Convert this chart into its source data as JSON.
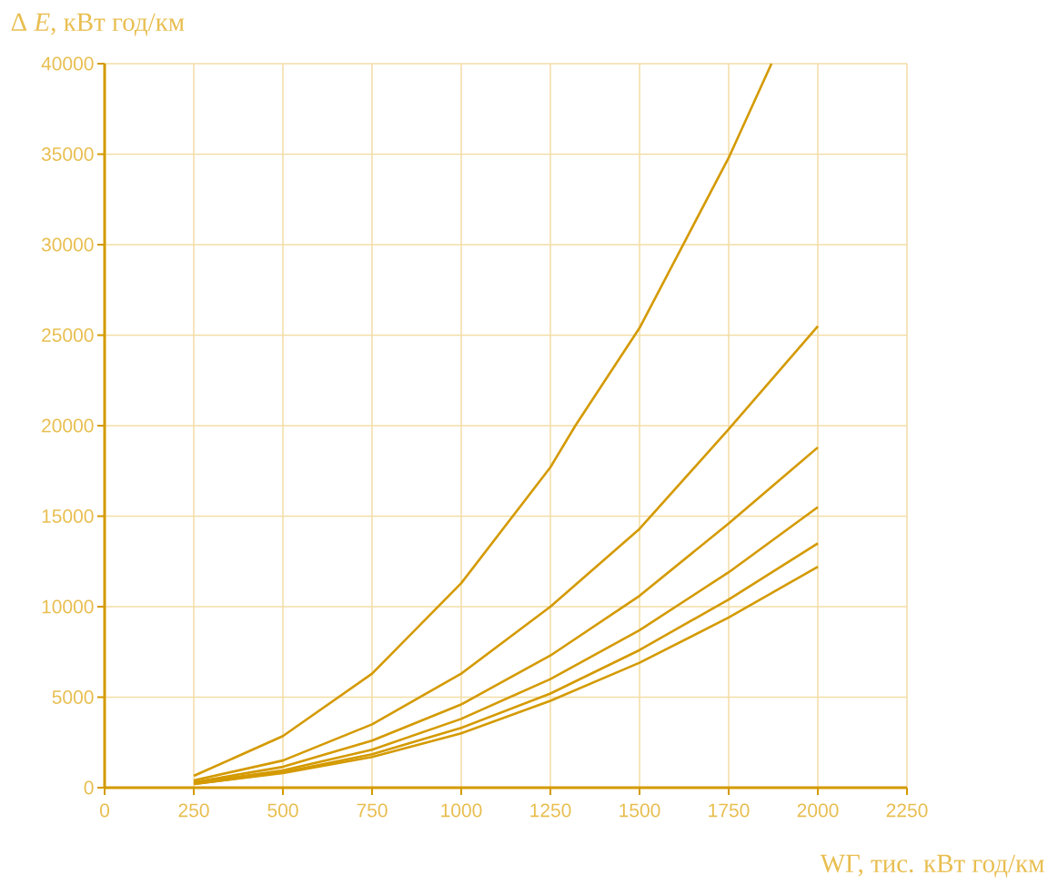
{
  "chart_data": {
    "type": "line",
    "xlabel": "WГ, тис. кВт год/км",
    "ylabel": "Δ *E*, кВт год/км",
    "xlim": [
      0,
      2250
    ],
    "ylim": [
      0,
      40000
    ],
    "xticks": [
      0,
      250,
      500,
      750,
      1000,
      1250,
      1500,
      1750,
      2000,
      2250
    ],
    "yticks": [
      0,
      5000,
      10000,
      15000,
      20000,
      25000,
      30000,
      35000,
      40000
    ],
    "grid": true,
    "marker": "none",
    "line_style": "solid",
    "series": [
      {
        "color": "#d49a00",
        "x": [
          250,
          500,
          750,
          1000,
          1250,
          1320,
          1500,
          1750,
          1870
        ],
        "values": [
          650,
          2850,
          6300,
          11300,
          17700,
          20000,
          25400,
          34800,
          40000
        ]
      },
      {
        "color": "#d49a00",
        "x": [
          250,
          500,
          750,
          1000,
          1250,
          1500,
          1750,
          2000
        ],
        "values": [
          400,
          1500,
          3500,
          6300,
          10000,
          14300,
          19800,
          25500
        ]
      },
      {
        "color": "#d49a00",
        "x": [
          250,
          500,
          750,
          1000,
          1250,
          1500,
          1750,
          2000
        ],
        "values": [
          300,
          1150,
          2600,
          4600,
          7300,
          10600,
          14600,
          18800
        ]
      },
      {
        "color": "#d49a00",
        "x": [
          250,
          500,
          750,
          1000,
          1250,
          1500,
          1750,
          2000
        ],
        "values": [
          250,
          950,
          2100,
          3800,
          6000,
          8700,
          11900,
          15500
        ]
      },
      {
        "color": "#d49a00",
        "x": [
          250,
          500,
          750,
          1000,
          1250,
          1500,
          1750,
          2000
        ],
        "values": [
          200,
          850,
          1850,
          3300,
          5200,
          7600,
          10400,
          13500
        ]
      },
      {
        "color": "#d49a00",
        "x": [
          250,
          500,
          750,
          1000,
          1250,
          1500,
          1750,
          2000
        ],
        "values": [
          200,
          800,
          1700,
          3000,
          4800,
          6900,
          9400,
          12200
        ]
      }
    ]
  }
}
